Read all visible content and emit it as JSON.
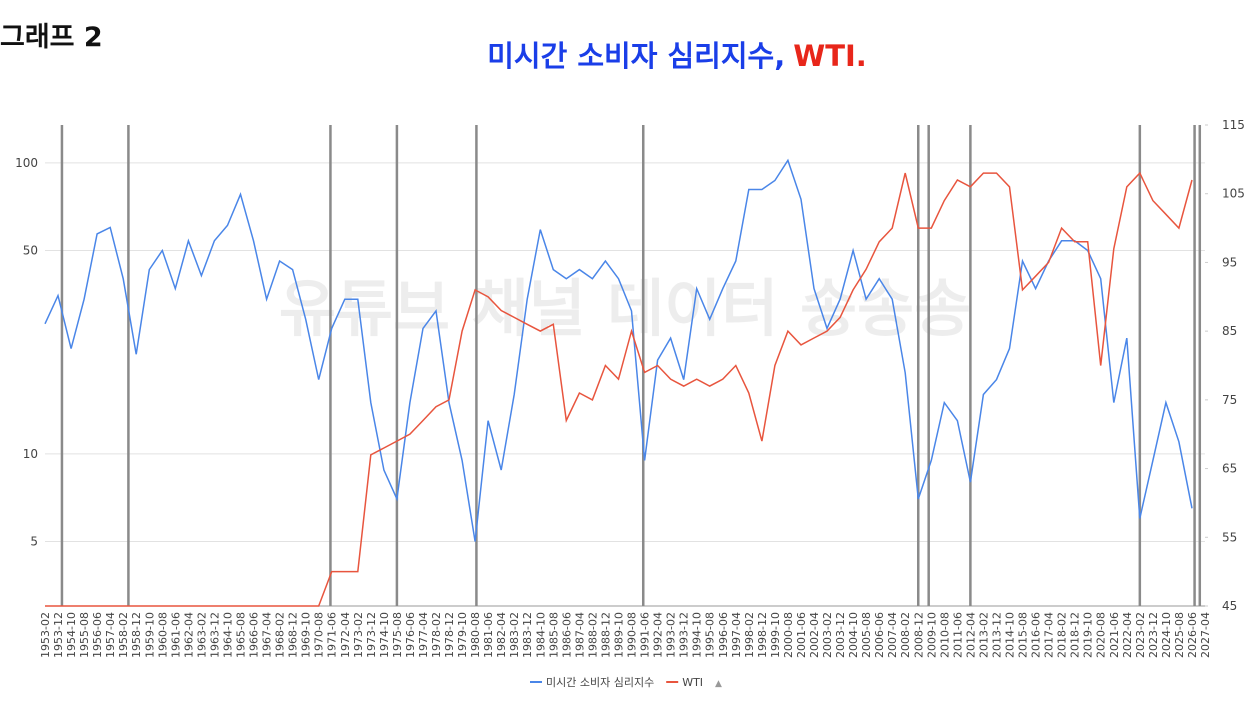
{
  "page_label": "그래프 2",
  "chart_data": {
    "type": "line",
    "title_parts": [
      {
        "text": "미시간 소비자 심리지수,",
        "color": "#1a3ee8"
      },
      {
        "text": "WTI.",
        "color": "#e8261a"
      }
    ],
    "watermark": "유튜브 채널 데이터 송송송",
    "categories": [
      "1953-02",
      "1953-12",
      "1954-10",
      "1955-08",
      "1956-06",
      "1957-04",
      "1958-02",
      "1958-12",
      "1959-10",
      "1960-08",
      "1961-06",
      "1962-04",
      "1963-02",
      "1963-12",
      "1964-10",
      "1965-08",
      "1966-06",
      "1967-04",
      "1968-02",
      "1968-12",
      "1969-10",
      "1970-08",
      "1971-06",
      "1972-04",
      "1973-02",
      "1973-12",
      "1974-10",
      "1975-08",
      "1976-06",
      "1977-04",
      "1978-02",
      "1978-12",
      "1979-10",
      "1980-08",
      "1981-06",
      "1982-04",
      "1983-02",
      "1983-12",
      "1984-10",
      "1985-08",
      "1986-06",
      "1987-04",
      "1988-02",
      "1988-12",
      "1989-10",
      "1990-08",
      "1991-06",
      "1992-04",
      "1993-02",
      "1993-12",
      "1994-10",
      "1995-08",
      "1996-06",
      "1997-04",
      "1998-02",
      "1998-12",
      "1999-10",
      "2000-08",
      "2001-06",
      "2002-04",
      "2003-02",
      "2003-12",
      "2004-10",
      "2005-08",
      "2006-06",
      "2007-04",
      "2008-02",
      "2008-12",
      "2009-10",
      "2010-08",
      "2011-06",
      "2012-04",
      "2013-02",
      "2013-12",
      "2014-10",
      "2015-08",
      "2016-06",
      "2017-04",
      "2018-02",
      "2018-12",
      "2019-10",
      "2020-08",
      "2021-06",
      "2022-04",
      "2023-02",
      "2023-12",
      "2024-10",
      "2025-08",
      "2026-06",
      "2027-04"
    ],
    "series": [
      {
        "name": "미시간 소비자 심리지수",
        "color": "#4a86e8",
        "axis": "y",
        "values": [
          28,
          35,
          23,
          34,
          57,
          60,
          40,
          22,
          43,
          50,
          37,
          54,
          41,
          54,
          61,
          78,
          54,
          34,
          46,
          43,
          29,
          18,
          27,
          34,
          34,
          15,
          8.8,
          7,
          15,
          27,
          31,
          15,
          9.5,
          5,
          13,
          8.8,
          16,
          34,
          59,
          43,
          40,
          43,
          40,
          46,
          40,
          31,
          9.5,
          21,
          25,
          18,
          37,
          29,
          37,
          46,
          81,
          81,
          87,
          102,
          75,
          37,
          27,
          34,
          50,
          34,
          40,
          34,
          19,
          7,
          9.5,
          15,
          13,
          8,
          16,
          18,
          23,
          46,
          37,
          46,
          54,
          54,
          50,
          40,
          15,
          25,
          6,
          9.5,
          15,
          11,
          6.5,
          null
        ]
      },
      {
        "name": "WTI",
        "color": "#e8553e",
        "axis": "y2",
        "values": [
          45,
          45,
          45,
          45,
          45,
          45,
          45,
          45,
          45,
          45,
          45,
          45,
          45,
          45,
          45,
          45,
          45,
          45,
          45,
          45,
          45,
          45,
          50,
          50,
          50,
          67,
          68,
          69,
          70,
          72,
          74,
          75,
          85,
          91,
          90,
          88,
          87,
          86,
          85,
          86,
          72,
          76,
          75,
          80,
          78,
          85,
          79,
          80,
          78,
          77,
          78,
          77,
          78,
          80,
          76,
          69,
          80,
          85,
          83,
          84,
          85,
          87,
          91,
          94,
          98,
          100,
          108,
          100,
          100,
          104,
          107,
          106,
          108,
          108,
          106,
          91,
          93,
          95,
          100,
          98,
          98,
          80,
          97,
          106,
          108,
          104,
          102,
          100,
          107,
          null
        ]
      }
    ],
    "markers": [
      "1954-03",
      "1958-06",
      "1971-05",
      "1975-08",
      "1980-09",
      "1991-05",
      "2008-12",
      "2009-08",
      "2012-04",
      "2023-02",
      "2026-08",
      "2026-12"
    ],
    "marker_color": "#8a8a8a",
    "yscale": "log",
    "ylim": [
      3,
      135
    ],
    "yticks": [
      5,
      10,
      50,
      100
    ],
    "y2lim": [
      45,
      115
    ],
    "y2ticks": [
      45,
      55,
      65,
      75,
      85,
      95,
      105,
      115
    ],
    "grid": true,
    "legend_position": "bottom",
    "legend_pager": "▲"
  }
}
